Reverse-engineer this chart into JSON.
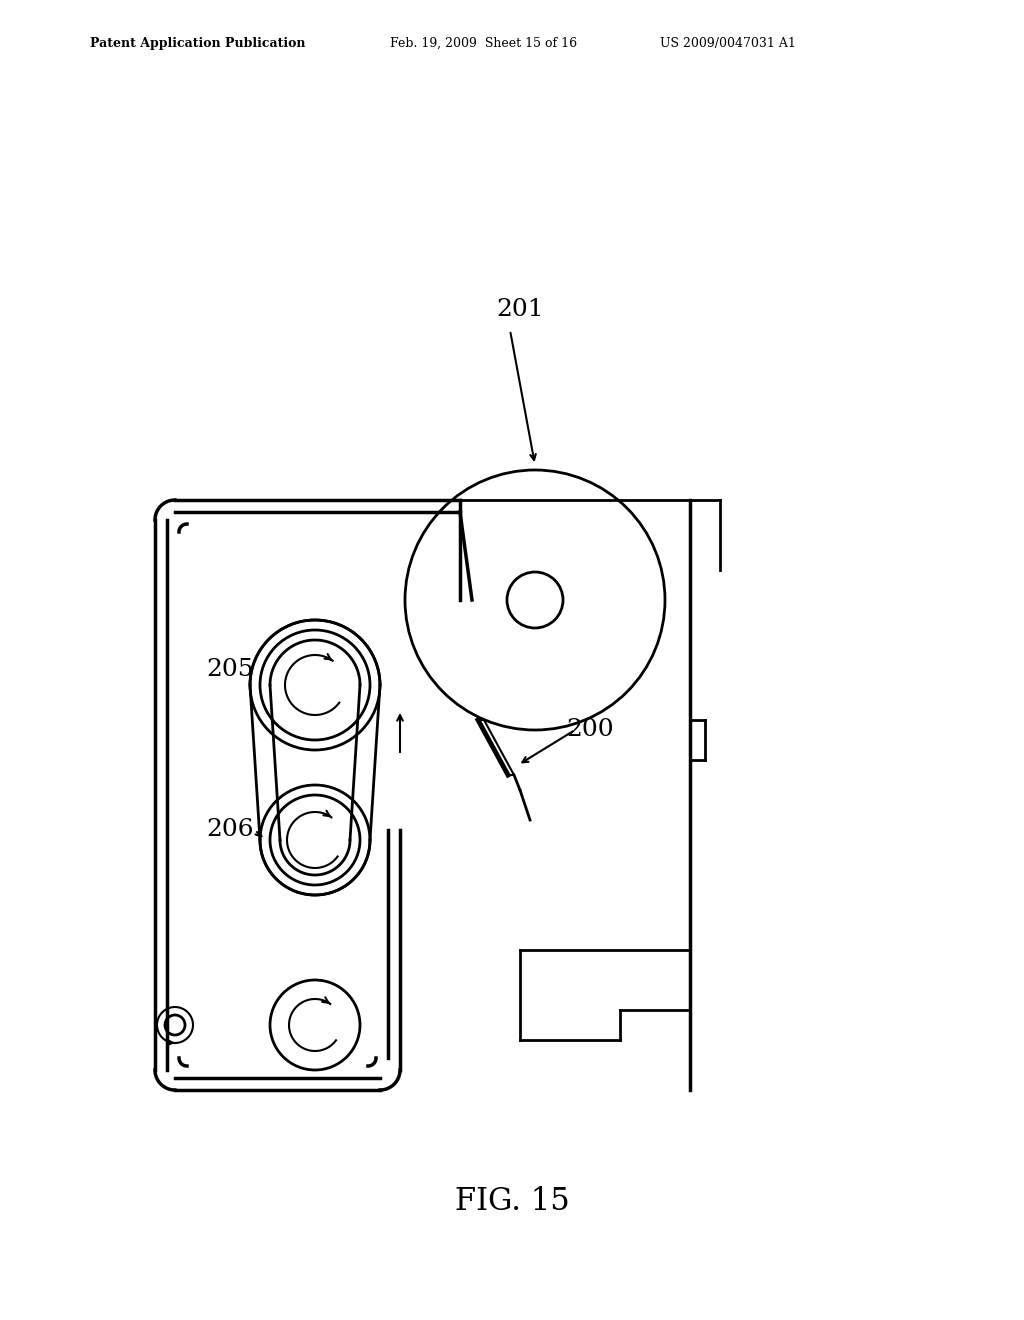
{
  "bg_color": "#ffffff",
  "line_color": "#000000",
  "header_left": "Patent Application Publication",
  "header_mid": "Feb. 19, 2009  Sheet 15 of 16",
  "header_right": "US 2009/0047031 A1",
  "footer_label": "FIG. 15",
  "label_201": "201",
  "label_200": "200",
  "label_205": "205",
  "label_206": "206"
}
